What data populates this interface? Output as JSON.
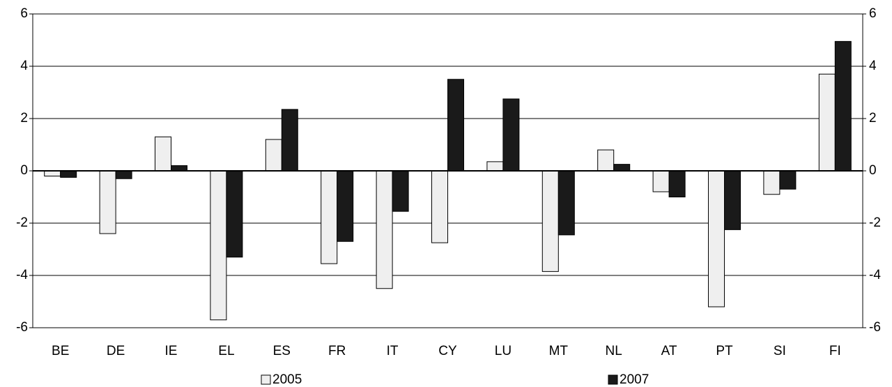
{
  "chart_data": {
    "type": "bar",
    "categories": [
      "BE",
      "DE",
      "IE",
      "EL",
      "ES",
      "FR",
      "IT",
      "CY",
      "LU",
      "MT",
      "NL",
      "AT",
      "PT",
      "SI",
      "FI"
    ],
    "series": [
      {
        "name": "2005",
        "color": "#efefef",
        "values": [
          -0.2,
          -2.4,
          1.3,
          -5.7,
          1.2,
          -3.55,
          -4.5,
          -2.75,
          0.35,
          -3.85,
          0.8,
          -0.8,
          -5.2,
          -0.9,
          3.7
        ]
      },
      {
        "name": "2007",
        "color": "#1a1a1a",
        "values": [
          -0.25,
          -0.3,
          0.2,
          -3.3,
          2.35,
          -2.7,
          -1.55,
          3.5,
          2.75,
          -2.45,
          0.25,
          -1.0,
          -2.25,
          -0.7,
          4.95
        ]
      }
    ],
    "ylim": [
      -6,
      6
    ],
    "yticks": [
      -6,
      -4,
      -2,
      0,
      2,
      4,
      6
    ],
    "y2lim": [
      -6,
      6
    ],
    "y2ticks": [
      -6,
      -4,
      -2,
      0,
      2,
      4,
      6
    ],
    "grid": true,
    "legend": "bottom"
  }
}
